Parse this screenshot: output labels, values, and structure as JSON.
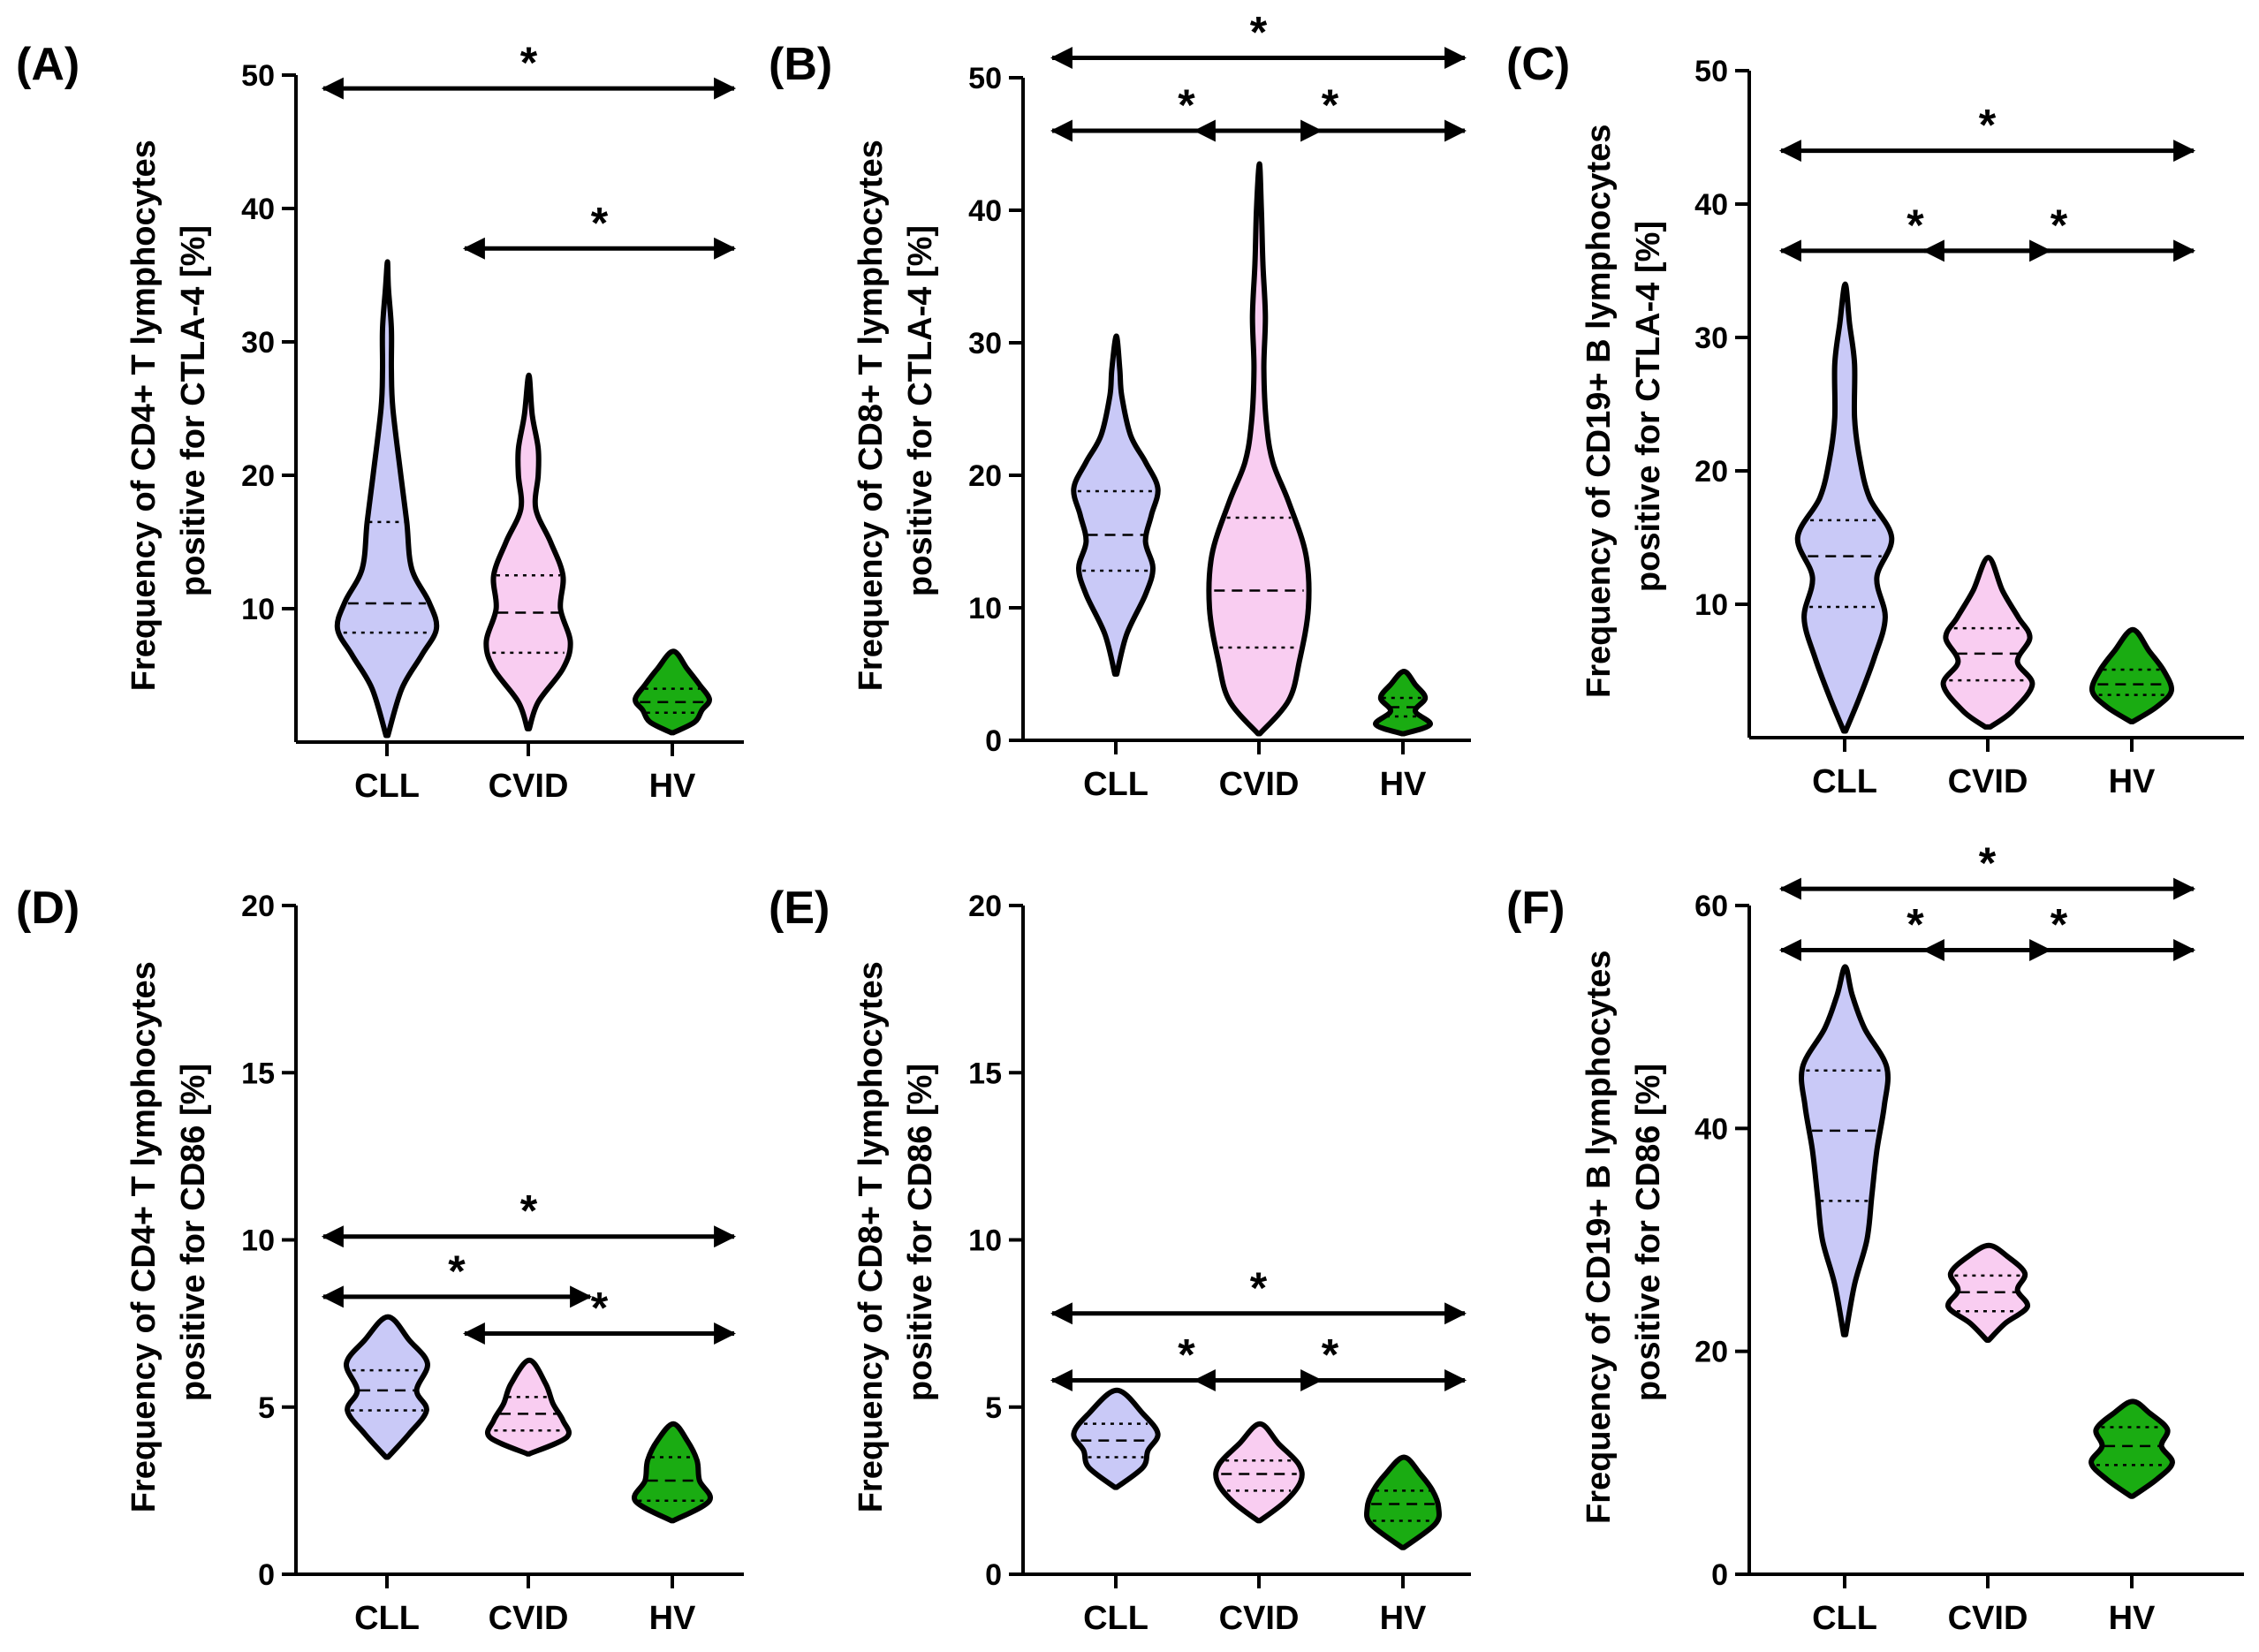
{
  "colors": {
    "CLL": "#c9c9f7",
    "CVID": "#f9cdf1",
    "HV": "#1aac12",
    "stroke": "#000000"
  },
  "chart_data": [
    {
      "id": "A",
      "panel_label": "(A)",
      "type": "violin",
      "ylabel_lines": [
        "Frequency of CD4+ T lymphocytes",
        "positive for CTLA-4 [%]"
      ],
      "ylim": [
        0,
        50
      ],
      "yticks": [
        10,
        20,
        30,
        40,
        50
      ],
      "tick_labels": [
        "10",
        "20",
        "30",
        "40",
        "50"
      ],
      "categories": [
        "CLL",
        "CVID",
        "HV"
      ],
      "series": [
        {
          "name": "CLL",
          "min": 0.5,
          "max": 36,
          "q1": 8.2,
          "median": 10.4,
          "q3": 16.5,
          "profile": [
            [
              0.5,
              0.02
            ],
            [
              4,
              0.3
            ],
            [
              6.5,
              0.7
            ],
            [
              8.5,
              1.0
            ],
            [
              10.5,
              0.85
            ],
            [
              13,
              0.5
            ],
            [
              16.5,
              0.4
            ],
            [
              20,
              0.28
            ],
            [
              25,
              0.12
            ],
            [
              28,
              0.09
            ],
            [
              31,
              0.09
            ],
            [
              34,
              0.03
            ],
            [
              36,
              0.01
            ]
          ]
        },
        {
          "name": "CVID",
          "min": 1,
          "max": 27.5,
          "q1": 6.7,
          "median": 9.7,
          "q3": 12.5,
          "profile": [
            [
              1,
              0.02
            ],
            [
              3,
              0.2
            ],
            [
              5.5,
              0.7
            ],
            [
              7.5,
              0.85
            ],
            [
              10,
              0.65
            ],
            [
              12.5,
              0.7
            ],
            [
              15,
              0.45
            ],
            [
              17.5,
              0.15
            ],
            [
              20,
              0.2
            ],
            [
              22,
              0.2
            ],
            [
              24.5,
              0.08
            ],
            [
              27.5,
              0.01
            ]
          ]
        },
        {
          "name": "HV",
          "min": 0.7,
          "max": 6.8,
          "q1": 2.2,
          "median": 3.0,
          "q3": 4.0,
          "profile": [
            [
              0.7,
              0.02
            ],
            [
              1.5,
              0.45
            ],
            [
              2.4,
              0.6
            ],
            [
              3.2,
              0.75
            ],
            [
              4.3,
              0.55
            ],
            [
              5.5,
              0.3
            ],
            [
              6.8,
              0.02
            ]
          ]
        }
      ],
      "significance": [
        {
          "from": "CLL",
          "to": "HV",
          "label": "*",
          "y": 49
        },
        {
          "from": "CVID",
          "to": "HV",
          "label": "*",
          "y": 37
        }
      ]
    },
    {
      "id": "B",
      "panel_label": "(B)",
      "type": "violin",
      "ylabel_lines": [
        "Frequency of CD8+ T lymphocytes",
        "positive for CTLA-4 [%]"
      ],
      "ylim": [
        0,
        50
      ],
      "yticks": [
        0,
        10,
        20,
        30,
        40,
        50
      ],
      "tick_labels": [
        "0",
        "10",
        "20",
        "30",
        "40",
        "50"
      ],
      "categories": [
        "CLL",
        "CVID",
        "HV"
      ],
      "series": [
        {
          "name": "CLL",
          "min": 5,
          "max": 30.5,
          "q1": 12.8,
          "median": 15.5,
          "q3": 18.8,
          "profile": [
            [
              5,
              0.02
            ],
            [
              8,
              0.22
            ],
            [
              11,
              0.6
            ],
            [
              13,
              0.75
            ],
            [
              15,
              0.6
            ],
            [
              17,
              0.72
            ],
            [
              19,
              0.85
            ],
            [
              21,
              0.6
            ],
            [
              23,
              0.3
            ],
            [
              26,
              0.12
            ],
            [
              28,
              0.08
            ],
            [
              30.5,
              0.01
            ]
          ]
        },
        {
          "name": "CVID",
          "min": 0.5,
          "max": 43.5,
          "q1": 7.0,
          "median": 11.3,
          "q3": 16.8,
          "profile": [
            [
              0.5,
              0.02
            ],
            [
              3,
              0.6
            ],
            [
              6,
              0.82
            ],
            [
              10,
              1.0
            ],
            [
              14,
              0.95
            ],
            [
              18,
              0.6
            ],
            [
              21,
              0.28
            ],
            [
              24,
              0.15
            ],
            [
              28,
              0.1
            ],
            [
              32,
              0.13
            ],
            [
              36,
              0.08
            ],
            [
              40,
              0.05
            ],
            [
              43.5,
              0.01
            ]
          ]
        },
        {
          "name": "HV",
          "min": 0.5,
          "max": 5.2,
          "q1": 1.8,
          "median": 2.5,
          "q3": 3.2,
          "profile": [
            [
              0.5,
              0.02
            ],
            [
              1.2,
              0.55
            ],
            [
              2.2,
              0.25
            ],
            [
              3.2,
              0.45
            ],
            [
              4.2,
              0.25
            ],
            [
              5.2,
              0.02
            ]
          ]
        }
      ],
      "significance": [
        {
          "from": "CLL",
          "to": "HV",
          "label": "*",
          "y": 51.5
        },
        {
          "from": "CLL",
          "to": "CVID",
          "label": "*",
          "y": 46
        },
        {
          "from": "CVID",
          "to": "HV",
          "label": "*",
          "y": 46
        }
      ]
    },
    {
      "id": "C",
      "panel_label": "(C)",
      "type": "violin",
      "ylabel_lines": [
        "Frequency of CD19+ B lymphocytes",
        "positive for CTLA-4 [%]"
      ],
      "ylim": [
        0,
        50
      ],
      "yticks": [
        10,
        20,
        30,
        40,
        50
      ],
      "tick_labels": [
        "10",
        "20",
        "30",
        "40",
        "50"
      ],
      "categories": [
        "CLL",
        "CVID",
        "HV"
      ],
      "series": [
        {
          "name": "CLL",
          "min": 0.5,
          "max": 34,
          "q1": 9.8,
          "median": 13.6,
          "q3": 16.3,
          "profile": [
            [
              0.5,
              0.02
            ],
            [
              3,
              0.3
            ],
            [
              6,
              0.6
            ],
            [
              9,
              0.82
            ],
            [
              12,
              0.65
            ],
            [
              15,
              0.95
            ],
            [
              18,
              0.5
            ],
            [
              21,
              0.3
            ],
            [
              24,
              0.2
            ],
            [
              28,
              0.2
            ],
            [
              31,
              0.1
            ],
            [
              34,
              0.01
            ]
          ]
        },
        {
          "name": "CVID",
          "min": 0.8,
          "max": 13.5,
          "q1": 4.3,
          "median": 6.3,
          "q3": 8.2,
          "profile": [
            [
              0.8,
              0.05
            ],
            [
              2,
              0.5
            ],
            [
              4,
              0.9
            ],
            [
              5.7,
              0.6
            ],
            [
              7.5,
              0.85
            ],
            [
              9,
              0.62
            ],
            [
              11,
              0.3
            ],
            [
              13.5,
              0.01
            ]
          ]
        },
        {
          "name": "HV",
          "min": 1.2,
          "max": 8.1,
          "q1": 3.2,
          "median": 4.0,
          "q3": 5.1,
          "profile": [
            [
              1.2,
              0.02
            ],
            [
              2.3,
              0.5
            ],
            [
              3.5,
              0.8
            ],
            [
              5,
              0.65
            ],
            [
              6.5,
              0.35
            ],
            [
              8.1,
              0.02
            ]
          ]
        }
      ],
      "significance": [
        {
          "from": "CLL",
          "to": "HV",
          "label": "*",
          "y": 44
        },
        {
          "from": "CLL",
          "to": "CVID",
          "label": "*",
          "y": 36.5
        },
        {
          "from": "CVID",
          "to": "HV",
          "label": "*",
          "y": 36.5
        }
      ]
    },
    {
      "id": "D",
      "panel_label": "(D)",
      "type": "violin",
      "ylabel_lines": [
        "Frequency of CD4+ T lymphocytes",
        "positive for CD86 [%]"
      ],
      "ylim": [
        0,
        20
      ],
      "yticks": [
        0,
        5,
        10,
        15,
        20
      ],
      "tick_labels": [
        "0",
        "5",
        "10",
        "15",
        "20"
      ],
      "categories": [
        "CLL",
        "CVID",
        "HV"
      ],
      "series": [
        {
          "name": "CLL",
          "min": 3.5,
          "max": 7.7,
          "q1": 4.9,
          "median": 5.5,
          "q3": 6.1,
          "profile": [
            [
              3.5,
              0.02
            ],
            [
              4.2,
              0.45
            ],
            [
              4.9,
              0.8
            ],
            [
              5.5,
              0.6
            ],
            [
              6.3,
              0.82
            ],
            [
              7,
              0.45
            ],
            [
              7.7,
              0.02
            ]
          ]
        },
        {
          "name": "CVID",
          "min": 3.6,
          "max": 6.4,
          "q1": 4.3,
          "median": 4.8,
          "q3": 5.3,
          "profile": [
            [
              3.6,
              0.02
            ],
            [
              4.1,
              0.78
            ],
            [
              4.6,
              0.7
            ],
            [
              5.1,
              0.5
            ],
            [
              5.7,
              0.35
            ],
            [
              6.4,
              0.02
            ]
          ]
        },
        {
          "name": "HV",
          "min": 1.6,
          "max": 4.5,
          "q1": 2.2,
          "median": 2.8,
          "q3": 3.5,
          "profile": [
            [
              1.6,
              0.02
            ],
            [
              2.2,
              0.75
            ],
            [
              2.8,
              0.55
            ],
            [
              3.4,
              0.5
            ],
            [
              4,
              0.3
            ],
            [
              4.5,
              0.02
            ]
          ]
        }
      ],
      "significance": [
        {
          "from": "CLL",
          "to": "HV",
          "label": "*",
          "y": 10.1
        },
        {
          "from": "CLL",
          "to": "CVID",
          "label": "*",
          "y": 8.3
        },
        {
          "from": "CVID",
          "to": "HV",
          "label": "*",
          "y": 7.2
        }
      ]
    },
    {
      "id": "E",
      "panel_label": "(E)",
      "type": "violin",
      "ylabel_lines": [
        "Frequency of CD8+ T lymphocytes",
        "positive for CD86 [%]"
      ],
      "ylim": [
        0,
        20
      ],
      "yticks": [
        0,
        5,
        10,
        15,
        20
      ],
      "tick_labels": [
        "0",
        "5",
        "10",
        "15",
        "20"
      ],
      "categories": [
        "CLL",
        "CVID",
        "HV"
      ],
      "series": [
        {
          "name": "CLL",
          "min": 2.6,
          "max": 5.5,
          "q1": 3.5,
          "median": 4.0,
          "q3": 4.5,
          "profile": [
            [
              2.6,
              0.02
            ],
            [
              3.2,
              0.55
            ],
            [
              3.7,
              0.65
            ],
            [
              4.2,
              0.85
            ],
            [
              4.8,
              0.55
            ],
            [
              5.5,
              0.02
            ]
          ]
        },
        {
          "name": "CVID",
          "min": 1.6,
          "max": 4.5,
          "q1": 2.5,
          "median": 3.0,
          "q3": 3.4,
          "profile": [
            [
              1.6,
              0.02
            ],
            [
              2.2,
              0.55
            ],
            [
              2.8,
              0.85
            ],
            [
              3.3,
              0.8
            ],
            [
              3.9,
              0.4
            ],
            [
              4.5,
              0.02
            ]
          ]
        },
        {
          "name": "HV",
          "min": 0.8,
          "max": 3.5,
          "q1": 1.6,
          "median": 2.1,
          "q3": 2.5,
          "profile": [
            [
              0.8,
              0.02
            ],
            [
              1.5,
              0.65
            ],
            [
              2,
              0.72
            ],
            [
              2.5,
              0.6
            ],
            [
              3,
              0.35
            ],
            [
              3.5,
              0.02
            ]
          ]
        }
      ],
      "significance": [
        {
          "from": "CLL",
          "to": "HV",
          "label": "*",
          "y": 7.8
        },
        {
          "from": "CLL",
          "to": "CVID",
          "label": "*",
          "y": 5.8
        },
        {
          "from": "CVID",
          "to": "HV",
          "label": "*",
          "y": 5.8
        }
      ]
    },
    {
      "id": "F",
      "panel_label": "(F)",
      "type": "violin",
      "ylabel_lines": [
        "Frequency of CD19+ B lymphocytes",
        "positive for CD86 [%]"
      ],
      "ylim": [
        0,
        60
      ],
      "yticks": [
        0,
        20,
        40,
        60
      ],
      "tick_labels": [
        "0",
        "20",
        "40",
        "60"
      ],
      "categories": [
        "CLL",
        "CVID",
        "HV"
      ],
      "series": [
        {
          "name": "CLL",
          "min": 21.5,
          "max": 54.5,
          "q1": 33.5,
          "median": 39.8,
          "q3": 45.2,
          "profile": [
            [
              21.5,
              0.02
            ],
            [
              26,
              0.2
            ],
            [
              30,
              0.45
            ],
            [
              34,
              0.55
            ],
            [
              38,
              0.65
            ],
            [
              42,
              0.8
            ],
            [
              45.5,
              0.85
            ],
            [
              49,
              0.4
            ],
            [
              52,
              0.15
            ],
            [
              54.5,
              0.01
            ]
          ]
        },
        {
          "name": "CVID",
          "min": 21,
          "max": 29.5,
          "q1": 23.6,
          "median": 25.3,
          "q3": 26.8,
          "profile": [
            [
              21,
              0.02
            ],
            [
              22.5,
              0.35
            ],
            [
              24,
              0.8
            ],
            [
              25.5,
              0.6
            ],
            [
              27,
              0.75
            ],
            [
              28.5,
              0.4
            ],
            [
              29.5,
              0.02
            ]
          ]
        },
        {
          "name": "HV",
          "min": 7,
          "max": 15.5,
          "q1": 9.8,
          "median": 11.5,
          "q3": 13.2,
          "profile": [
            [
              7,
              0.02
            ],
            [
              8.5,
              0.5
            ],
            [
              10,
              0.82
            ],
            [
              11.5,
              0.6
            ],
            [
              13,
              0.72
            ],
            [
              14.5,
              0.35
            ],
            [
              15.5,
              0.02
            ]
          ]
        }
      ],
      "significance": [
        {
          "from": "CLL",
          "to": "HV",
          "label": "*",
          "y": 61.5
        },
        {
          "from": "CLL",
          "to": "CVID",
          "label": "*",
          "y": 56
        },
        {
          "from": "CVID",
          "to": "HV",
          "label": "*",
          "y": 56
        }
      ]
    }
  ]
}
